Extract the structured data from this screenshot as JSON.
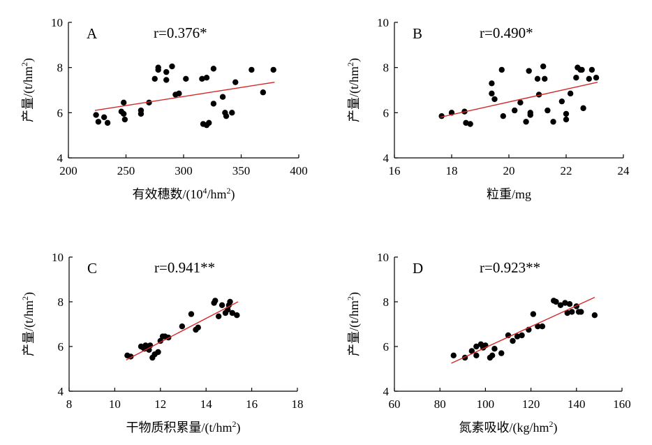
{
  "chart_data": [
    {
      "panel_letter": "A",
      "type": "scatter",
      "annotation": "r=0.376*",
      "xlabel": "有效穗数/(10",
      "xlabel_sup": "4",
      "xlabel_tail": "/hm",
      "xlabel_sup2": "2",
      "xlabel_end": ")",
      "ylabel": "产量/(t/hm",
      "ylabel_sup": "2",
      "ylabel_end": ")",
      "xlim": [
        200,
        400
      ],
      "ylim": [
        4,
        10
      ],
      "xticks": [
        200,
        250,
        300,
        350,
        400
      ],
      "yticks": [
        4,
        6,
        8,
        10
      ],
      "trend_line": {
        "x": [
          223,
          379
        ],
        "y": [
          6.1,
          7.35
        ],
        "color": "#d62728"
      },
      "points": [
        [
          224,
          5.9
        ],
        [
          226,
          5.6
        ],
        [
          231,
          5.8
        ],
        [
          234,
          5.55
        ],
        [
          246,
          6.05
        ],
        [
          248,
          6.45
        ],
        [
          248,
          5.95
        ],
        [
          249,
          5.7
        ],
        [
          263,
          6.1
        ],
        [
          263,
          5.95
        ],
        [
          270,
          6.45
        ],
        [
          275,
          7.5
        ],
        [
          278,
          8.0
        ],
        [
          278,
          7.9
        ],
        [
          285,
          7.8
        ],
        [
          285,
          7.45
        ],
        [
          290,
          8.05
        ],
        [
          293,
          6.8
        ],
        [
          296,
          6.85
        ],
        [
          302,
          7.5
        ],
        [
          316,
          7.5
        ],
        [
          317,
          5.5
        ],
        [
          320,
          7.55
        ],
        [
          320,
          5.45
        ],
        [
          322,
          5.55
        ],
        [
          326,
          7.95
        ],
        [
          326,
          6.4
        ],
        [
          334,
          6.7
        ],
        [
          336,
          6.0
        ],
        [
          337,
          5.85
        ],
        [
          342,
          6.0
        ],
        [
          345,
          7.35
        ],
        [
          359,
          7.9
        ],
        [
          369,
          6.9
        ],
        [
          378,
          7.9
        ]
      ]
    },
    {
      "panel_letter": "B",
      "type": "scatter",
      "annotation": "r=0.490*",
      "xlabel": "粒重/mg",
      "ylabel": "产量/(t/hm",
      "ylabel_sup": "2",
      "ylabel_end": ")",
      "xlim": [
        16,
        24
      ],
      "ylim": [
        4,
        10
      ],
      "xticks": [
        16,
        18,
        20,
        22,
        24
      ],
      "yticks": [
        4,
        6,
        8,
        10
      ],
      "trend_line": {
        "x": [
          17.6,
          23.1
        ],
        "y": [
          5.8,
          7.35
        ],
        "color": "#d62728"
      },
      "points": [
        [
          17.65,
          5.85
        ],
        [
          18.0,
          6.0
        ],
        [
          18.45,
          6.05
        ],
        [
          18.5,
          5.55
        ],
        [
          18.65,
          5.5
        ],
        [
          19.4,
          7.3
        ],
        [
          19.4,
          6.85
        ],
        [
          19.5,
          6.6
        ],
        [
          19.75,
          7.9
        ],
        [
          19.8,
          5.85
        ],
        [
          20.2,
          6.1
        ],
        [
          20.4,
          6.45
        ],
        [
          20.6,
          5.6
        ],
        [
          20.7,
          7.85
        ],
        [
          20.75,
          6.0
        ],
        [
          20.75,
          5.9
        ],
        [
          21.0,
          7.5
        ],
        [
          21.05,
          6.8
        ],
        [
          21.2,
          8.05
        ],
        [
          21.25,
          7.5
        ],
        [
          21.35,
          6.1
        ],
        [
          21.55,
          5.6
        ],
        [
          21.85,
          6.5
        ],
        [
          22.0,
          5.95
        ],
        [
          22.0,
          5.7
        ],
        [
          22.15,
          6.85
        ],
        [
          22.35,
          7.55
        ],
        [
          22.4,
          8.0
        ],
        [
          22.5,
          7.9
        ],
        [
          22.55,
          7.9
        ],
        [
          22.6,
          6.2
        ],
        [
          22.8,
          7.5
        ],
        [
          22.9,
          7.9
        ],
        [
          23.05,
          7.55
        ]
      ]
    },
    {
      "panel_letter": "C",
      "type": "scatter",
      "annotation": "r=0.941**",
      "xlabel": "干物质积累量/(t/hm",
      "xlabel_sup": "2",
      "xlabel_end": ")",
      "ylabel": "产量/(t/hm",
      "ylabel_sup": "2",
      "ylabel_end": ")",
      "xlim": [
        8,
        18
      ],
      "ylim": [
        4,
        10
      ],
      "xticks": [
        8,
        10,
        12,
        14,
        16,
        18
      ],
      "yticks": [
        4,
        6,
        8,
        10
      ],
      "trend_line": {
        "x": [
          10.5,
          15.4
        ],
        "y": [
          5.4,
          8.0
        ],
        "color": "#d62728"
      },
      "points": [
        [
          10.55,
          5.6
        ],
        [
          10.7,
          5.55
        ],
        [
          11.15,
          6.0
        ],
        [
          11.25,
          5.95
        ],
        [
          11.3,
          5.9
        ],
        [
          11.35,
          6.05
        ],
        [
          11.5,
          5.85
        ],
        [
          11.55,
          6.05
        ],
        [
          11.65,
          5.5
        ],
        [
          11.75,
          5.65
        ],
        [
          11.9,
          5.75
        ],
        [
          12.0,
          6.25
        ],
        [
          12.1,
          6.45
        ],
        [
          12.2,
          6.45
        ],
        [
          12.35,
          6.4
        ],
        [
          12.95,
          6.9
        ],
        [
          13.35,
          7.45
        ],
        [
          13.55,
          6.75
        ],
        [
          13.65,
          6.85
        ],
        [
          14.35,
          7.95
        ],
        [
          14.4,
          8.05
        ],
        [
          14.55,
          7.35
        ],
        [
          14.7,
          7.85
        ],
        [
          14.85,
          7.5
        ],
        [
          14.95,
          7.65
        ],
        [
          15.05,
          8.0
        ],
        [
          15.15,
          7.5
        ],
        [
          15.35,
          7.4
        ],
        [
          15.0,
          7.85
        ]
      ]
    },
    {
      "panel_letter": "D",
      "type": "scatter",
      "annotation": "r=0.923**",
      "xlabel": "氮素吸收/(kg/hm",
      "xlabel_sup": "2",
      "xlabel_end": ")",
      "ylabel": "产量/(t/hm",
      "ylabel_sup": "2",
      "ylabel_end": ")",
      "xlim": [
        60,
        160
      ],
      "ylim": [
        4,
        10
      ],
      "xticks": [
        60,
        80,
        100,
        120,
        140,
        160
      ],
      "yticks": [
        4,
        6,
        8,
        10
      ],
      "trend_line": {
        "x": [
          85,
          148
        ],
        "y": [
          5.25,
          8.2
        ],
        "color": "#d62728"
      },
      "points": [
        [
          86,
          5.6
        ],
        [
          91,
          5.5
        ],
        [
          94,
          5.8
        ],
        [
          96,
          5.6
        ],
        [
          96,
          6.0
        ],
        [
          98,
          6.1
        ],
        [
          99,
          5.95
        ],
        [
          100,
          6.05
        ],
        [
          102,
          5.5
        ],
        [
          103,
          5.6
        ],
        [
          104,
          5.9
        ],
        [
          107,
          5.7
        ],
        [
          110,
          6.5
        ],
        [
          112,
          6.25
        ],
        [
          114,
          6.45
        ],
        [
          116,
          6.5
        ],
        [
          119,
          6.75
        ],
        [
          121,
          7.45
        ],
        [
          123,
          6.9
        ],
        [
          125,
          6.9
        ],
        [
          130,
          8.05
        ],
        [
          131,
          8.0
        ],
        [
          133,
          7.85
        ],
        [
          135,
          7.95
        ],
        [
          136,
          7.5
        ],
        [
          137,
          7.9
        ],
        [
          138,
          7.55
        ],
        [
          140,
          7.8
        ],
        [
          141,
          7.55
        ],
        [
          142,
          7.55
        ],
        [
          148,
          7.4
        ]
      ]
    }
  ]
}
